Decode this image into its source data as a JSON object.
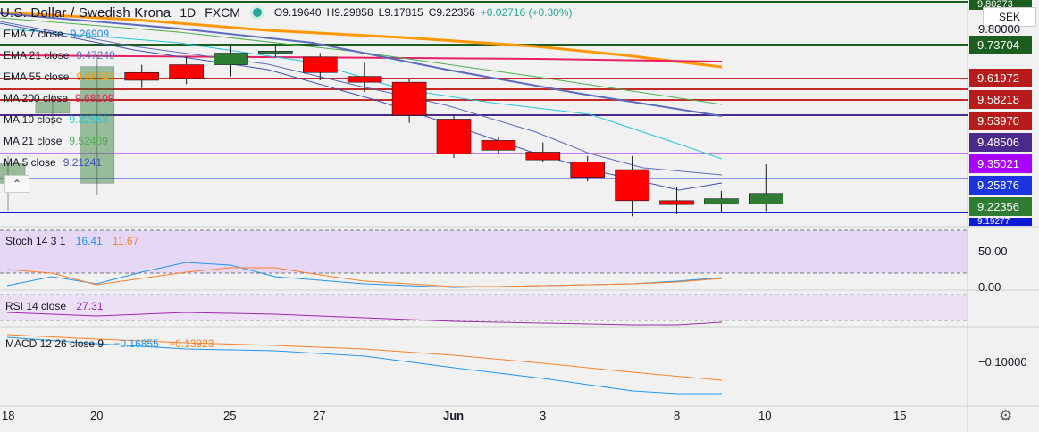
{
  "header": {
    "symbol": "U.S. Dollar / Swedish Krona",
    "interval": "1D",
    "source": "FXCM",
    "open": "O9.19640",
    "high": "H9.29858",
    "low": "L9.17815",
    "close": "C9.22356",
    "change": "+0.02716 (+0.30%)"
  },
  "legend": [
    {
      "name": "EMA 7 close",
      "value": "9.26909",
      "color": "#1e88e5"
    },
    {
      "name": "EMA 21 close",
      "value": "9.47249",
      "color": "#5c6bc0"
    },
    {
      "name": "EMA 55 close",
      "value": "9.68347",
      "color": "#ff9800"
    },
    {
      "name": "MA 200 close",
      "value": "9.68109",
      "color": "#e91e63"
    },
    {
      "name": "MA 10 close",
      "value": "9.32563",
      "color": "#26c6da"
    },
    {
      "name": "MA 21 close",
      "value": "9.52409",
      "color": "#4caf50"
    },
    {
      "name": "MA 5 close",
      "value": "9.21241",
      "color": "#3f51b5"
    }
  ],
  "collapse_icon": "chevron-up-icon",
  "collapse_glyph": "⌃",
  "price_axis": {
    "currency": "SEK",
    "top_label": "9.80273",
    "plain_label": "9.80000",
    "tags": [
      {
        "value": "9.73704",
        "color": "#1b5e20"
      },
      {
        "value": "9.61972",
        "color": "#b71c1c"
      },
      {
        "value": "9.58218",
        "color": "#b71c1c"
      },
      {
        "value": "9.53970",
        "color": "#b71c1c"
      },
      {
        "value": "9.48506",
        "color": "#4a2a8a"
      },
      {
        "value": "9.35021",
        "color": "#aa00ff"
      },
      {
        "value": "9.25876",
        "color": "#1a35e0"
      },
      {
        "value": "9.22356",
        "color": "#2e7d32"
      },
      {
        "value": "9.19277",
        "color": "#0d1bd4"
      }
    ]
  },
  "candles": [
    {
      "o": 9.25,
      "h": 9.32,
      "l": 9.18,
      "c": 9.3
    },
    {
      "o": 9.43,
      "h": 9.48,
      "l": 9.4,
      "c": 9.46
    },
    {
      "o": 9.25,
      "h": 9.58,
      "l": 9.22,
      "c": 9.55
    },
    {
      "o": 9.535,
      "h": 9.555,
      "l": 9.495,
      "c": 9.515
    },
    {
      "o": 9.555,
      "h": 9.575,
      "l": 9.505,
      "c": 9.52
    },
    {
      "o": 9.555,
      "h": 9.605,
      "l": 9.525,
      "c": 9.585
    },
    {
      "o": 9.585,
      "h": 9.605,
      "l": 9.575,
      "c": 9.59
    },
    {
      "o": 9.575,
      "h": 9.585,
      "l": 9.515,
      "c": 9.535
    },
    {
      "o": 9.525,
      "h": 9.56,
      "l": 9.485,
      "c": 9.51
    },
    {
      "o": 9.51,
      "h": 9.52,
      "l": 9.405,
      "c": 9.425
    },
    {
      "o": 9.415,
      "h": 9.425,
      "l": 9.315,
      "c": 9.325
    },
    {
      "o": 9.36,
      "h": 9.37,
      "l": 9.325,
      "c": 9.335
    },
    {
      "o": 9.33,
      "h": 9.355,
      "l": 9.305,
      "c": 9.31
    },
    {
      "o": 9.305,
      "h": 9.32,
      "l": 9.255,
      "c": 9.265
    },
    {
      "o": 9.285,
      "h": 9.32,
      "l": 9.165,
      "c": 9.205
    },
    {
      "o": 9.205,
      "h": 9.24,
      "l": 9.17,
      "c": 9.195
    },
    {
      "o": 9.196,
      "h": 9.23,
      "l": 9.175,
      "c": 9.21
    },
    {
      "o": 9.1964,
      "h": 9.29858,
      "l": 9.17815,
      "c": 9.22356
    }
  ],
  "stoch": {
    "name": "Stoch 14 3 1",
    "k": "16.41",
    "d": "11.67",
    "ticks": [
      "50.00",
      "0.00"
    ]
  },
  "rsi": {
    "name": "RSI 14 close",
    "value": "27.31"
  },
  "macd": {
    "name": "MACD 12 26 close 9",
    "macd": "−0.16855",
    "signal": "−0.13923",
    "tick": "−0.10000"
  },
  "time_axis": [
    "18",
    "20",
    "25",
    "27",
    "Jun",
    "3",
    "8",
    "10",
    "15"
  ],
  "settings_icon": "gear-icon",
  "settings_glyph": "⚙"
}
